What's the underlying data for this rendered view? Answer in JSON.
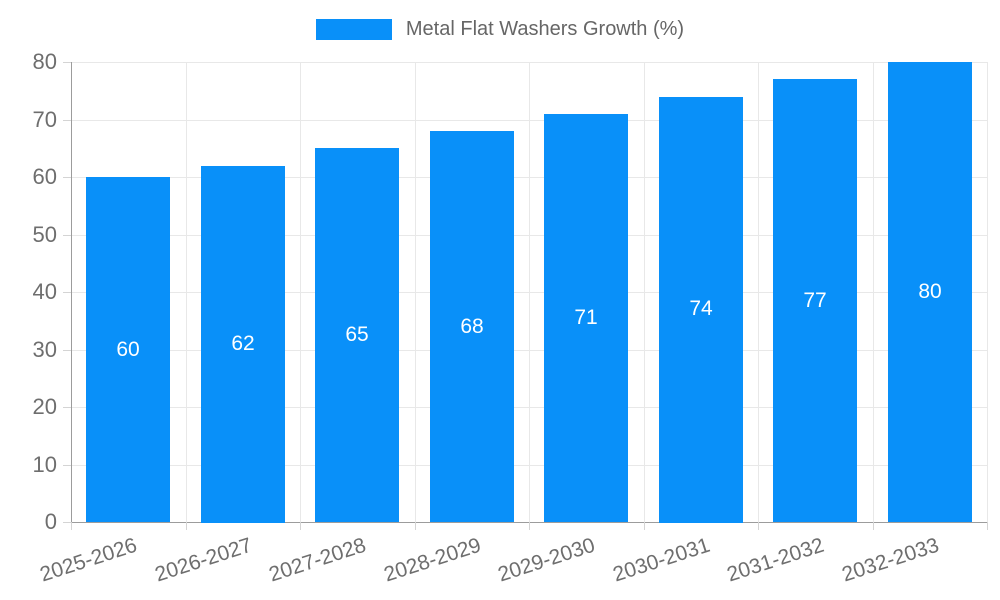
{
  "legend": {
    "label": "Metal Flat Washers Growth (%)"
  },
  "chart_data": {
    "type": "bar",
    "title": "",
    "series_name": "Metal Flat Washers Growth (%)",
    "categories": [
      "2025-2026",
      "2026-2027",
      "2027-2028",
      "2028-2029",
      "2029-2030",
      "2030-2031",
      "2031-2032",
      "2032-2033"
    ],
    "values": [
      60,
      62,
      65,
      68,
      71,
      74,
      77,
      80
    ],
    "bar_labels": [
      "60",
      "62",
      "65",
      "68",
      "71",
      "74",
      "77",
      "80"
    ],
    "xlabel": "",
    "ylabel": "",
    "ylim": [
      0,
      80
    ],
    "yticks": [
      0,
      10,
      20,
      30,
      40,
      50,
      60,
      70,
      80
    ],
    "grid": true,
    "legend_position": "top",
    "bar_color": "#0990f9",
    "bar_label_color": "#ffffff",
    "axis_text_color": "#6e6e6e",
    "legend_text_color": "#666666"
  }
}
